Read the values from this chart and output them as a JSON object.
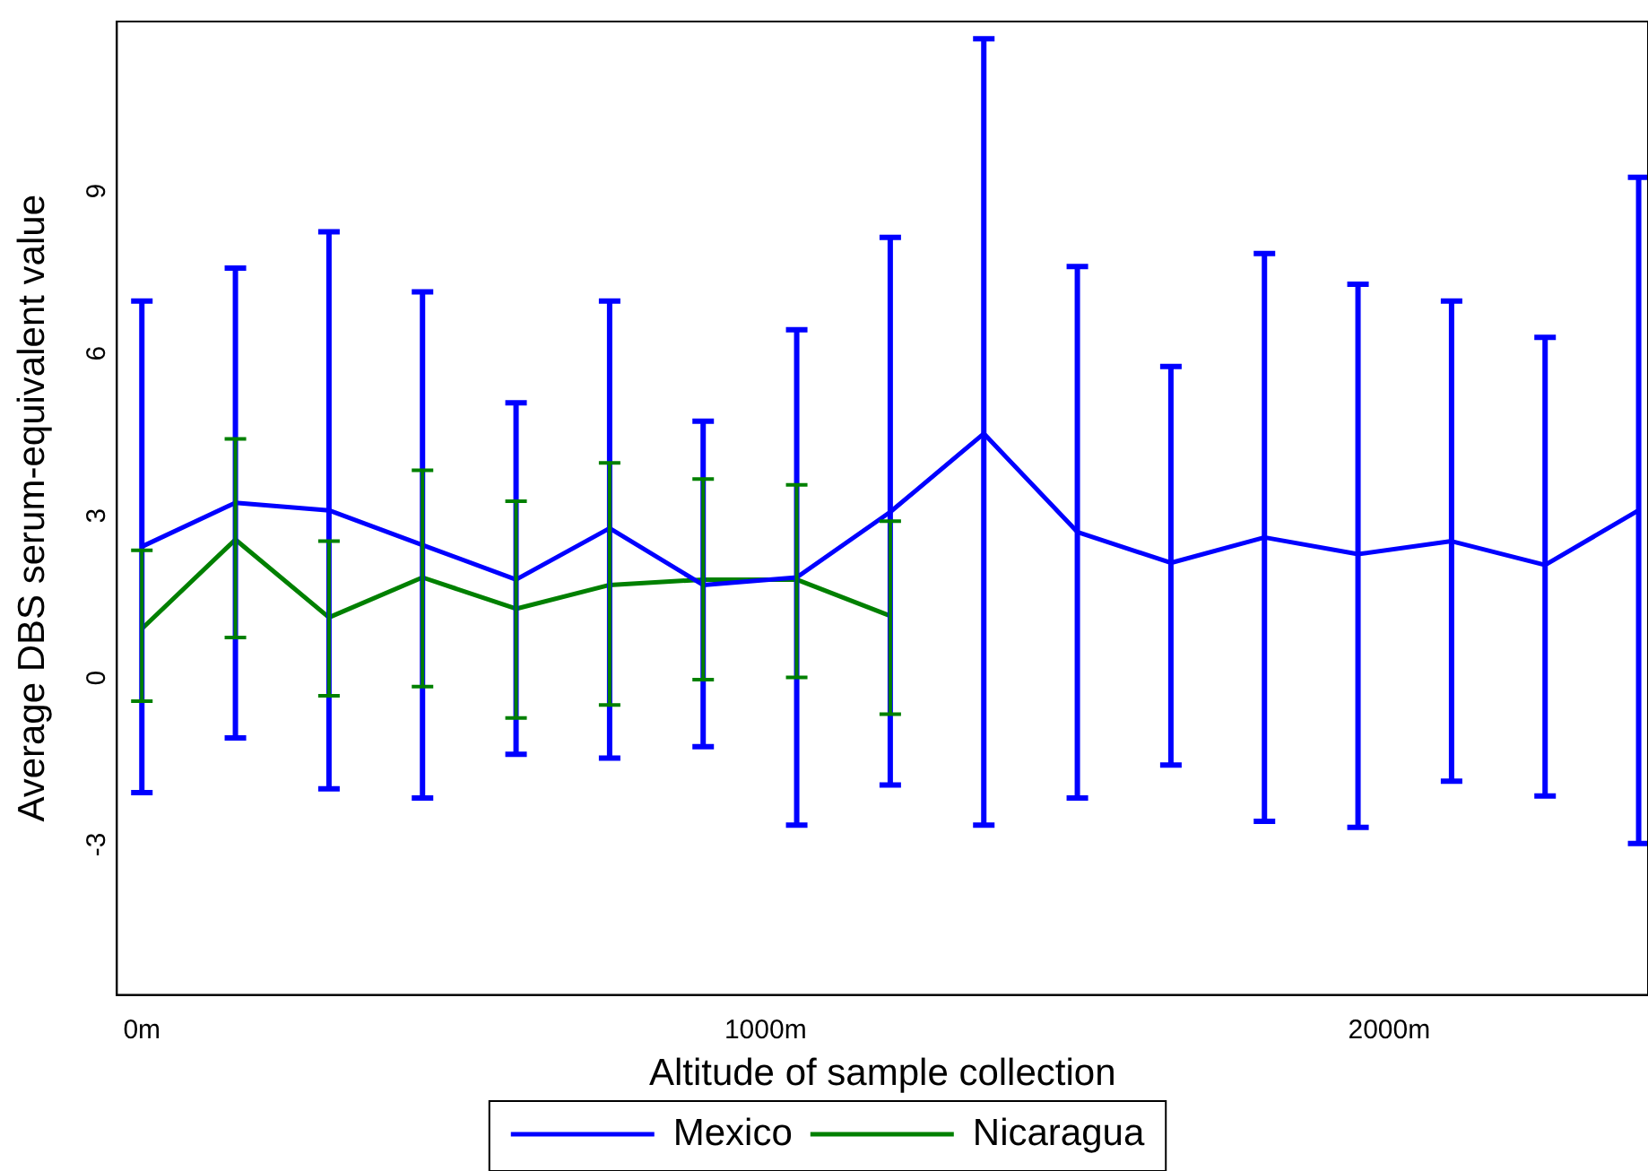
{
  "chart_data": {
    "type": "line",
    "xlabel": "Altitude of sample collection",
    "ylabel": "Average DBS serum-equivalent value",
    "x": [
      0,
      150,
      300,
      450,
      600,
      750,
      900,
      1050,
      1200,
      1350,
      1500,
      1650,
      1800,
      1950,
      2100,
      2250,
      2400
    ],
    "xlim": [
      -40,
      2415
    ],
    "xticks": [
      {
        "value": 0,
        "label": "0m"
      },
      {
        "value": 1000,
        "label": "1000m"
      },
      {
        "value": 2000,
        "label": "2000m"
      }
    ],
    "ylim": [
      -6,
      12
    ],
    "yticks": [
      -3,
      0,
      3,
      6,
      9
    ],
    "grid": false,
    "legend": "bottom",
    "marker": "none",
    "line_style": "solid",
    "series": [
      {
        "name": "Mexico",
        "color": "#0000ff",
        "values": [
          2.29,
          3.1,
          2.96,
          2.32,
          1.68,
          2.63,
          1.58,
          1.72,
          2.93,
          4.38,
          2.56,
          1.99,
          2.46,
          2.15,
          2.39,
          1.95,
          2.96
        ],
        "errors": [
          [
            -2.26,
            6.83
          ],
          [
            -1.25,
            7.44
          ],
          [
            -2.19,
            8.11
          ],
          [
            -2.36,
            7.0
          ],
          [
            -1.55,
            4.95
          ],
          [
            -1.62,
            6.83
          ],
          [
            -1.41,
            4.61
          ],
          [
            -2.86,
            6.3
          ],
          [
            -2.12,
            8.01
          ],
          [
            -2.86,
            11.68
          ],
          [
            -2.36,
            7.47
          ],
          [
            -1.75,
            5.62
          ],
          [
            -2.79,
            7.71
          ],
          [
            -2.9,
            7.14
          ],
          [
            -2.05,
            6.83
          ],
          [
            -2.32,
            6.16
          ],
          [
            -3.2,
            9.12
          ]
        ]
      },
      {
        "name": "Nicaragua",
        "color": "#008000",
        "x": [
          0,
          150,
          300,
          450,
          600,
          750,
          900,
          1050,
          1200
        ],
        "values": [
          0.77,
          2.42,
          0.98,
          1.72,
          1.14,
          1.58,
          1.68,
          1.68,
          1.01
        ],
        "errors": [
          [
            -0.57,
            2.22
          ],
          [
            0.61,
            4.28
          ],
          [
            -0.47,
            2.39
          ],
          [
            -0.3,
            3.7
          ],
          [
            -0.88,
            3.13
          ],
          [
            -0.64,
            3.84
          ],
          [
            -0.17,
            3.54
          ],
          [
            -0.13,
            3.43
          ],
          [
            -0.81,
            2.76
          ]
        ]
      }
    ]
  }
}
